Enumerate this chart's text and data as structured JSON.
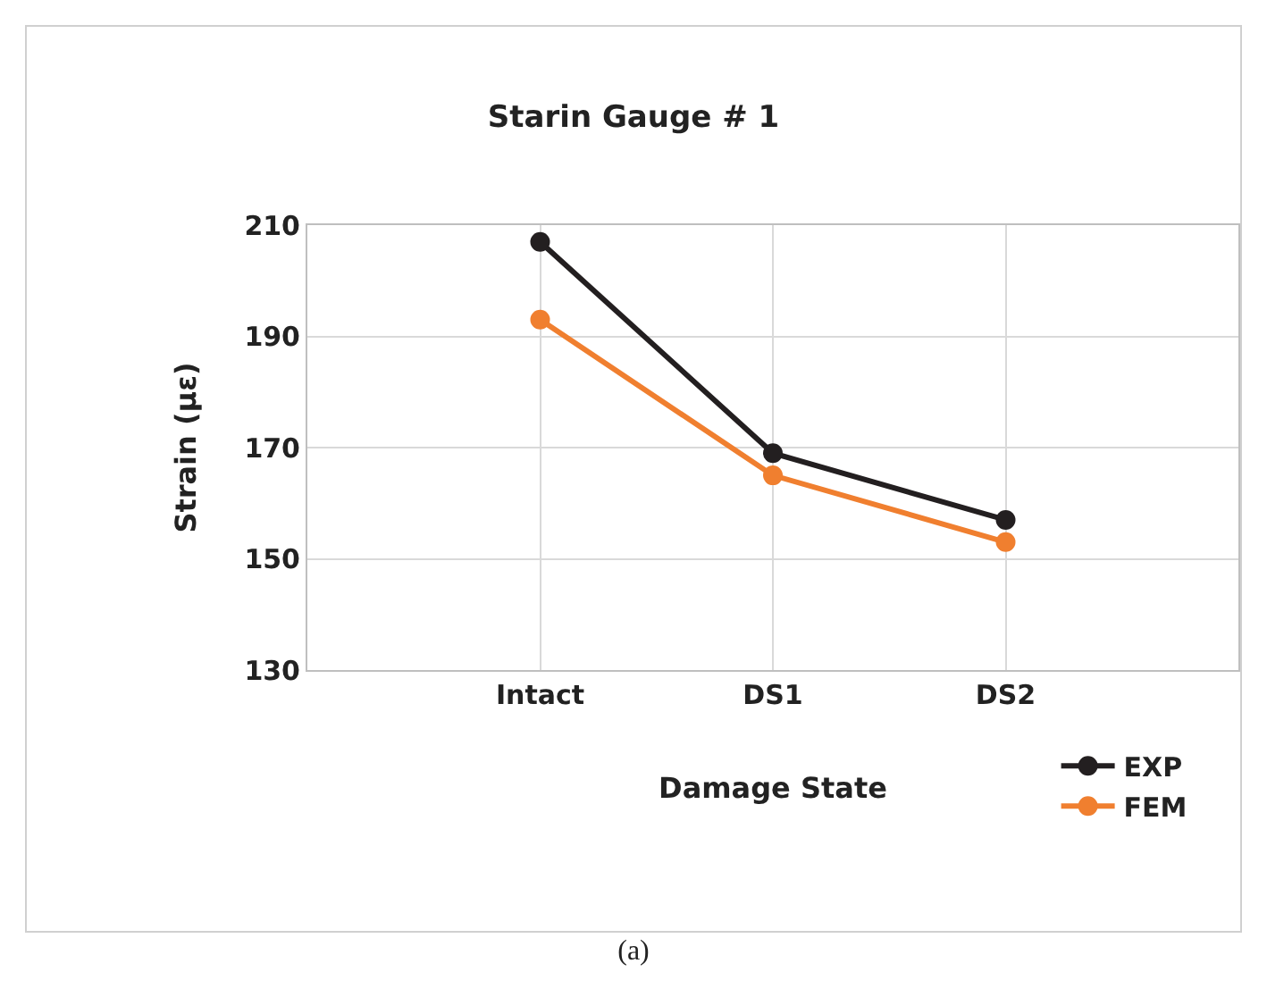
{
  "chart_data": {
    "type": "line",
    "title": "Starin Gauge # 1",
    "xlabel": "Damage State",
    "ylabel": "Strain (με)",
    "categories": [
      "Intact",
      "DS1",
      "DS2"
    ],
    "series": [
      {
        "name": "EXP",
        "color": "#231f20",
        "values": [
          207,
          169,
          157
        ]
      },
      {
        "name": "FEM",
        "color": "#f07f2f",
        "values": [
          193,
          165,
          153
        ]
      }
    ],
    "ylim": [
      130,
      210
    ],
    "yticks": [
      130,
      150,
      170,
      190,
      210
    ],
    "grid": true,
    "legend": "bottom right",
    "marker": "circle",
    "line_style": "solid",
    "annotations": [
      "(a)"
    ]
  }
}
